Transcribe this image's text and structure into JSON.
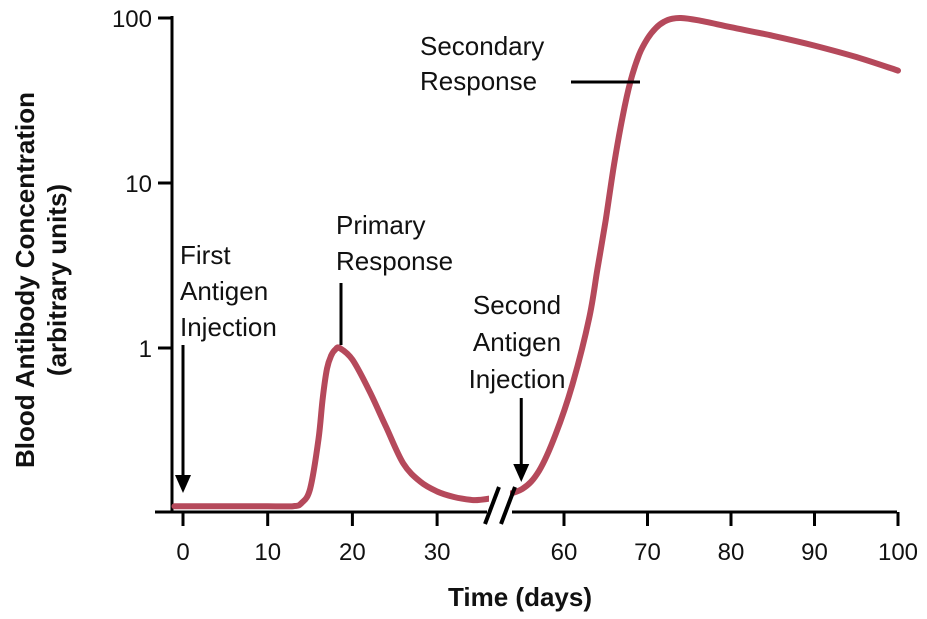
{
  "chart_data": {
    "type": "line",
    "xlabel": "Time (days)",
    "ylabel_line1": "Blood Antibody Concentration",
    "ylabel_line2": "(arbitrary units)",
    "y_scale": "log",
    "grid": false,
    "axis_break": "x between 30 and 60",
    "x_ticks": [
      0,
      10,
      20,
      30,
      60,
      70,
      80,
      90,
      100
    ],
    "x_tick_labels": [
      "0",
      "10",
      "20",
      "30",
      "60",
      "70",
      "80",
      "90",
      "100"
    ],
    "y_ticks": [
      1,
      10,
      100
    ],
    "y_tick_labels": [
      "1",
      "10",
      "100"
    ],
    "curve_color": "#b5495b",
    "series": [
      {
        "points": [
          [
            -1,
            0.11
          ],
          [
            0,
            0.11
          ],
          [
            5,
            0.11
          ],
          [
            10,
            0.11
          ],
          [
            13,
            0.11
          ],
          [
            14,
            0.115
          ],
          [
            15,
            0.14
          ],
          [
            16,
            0.28
          ],
          [
            16.5,
            0.5
          ],
          [
            17,
            0.75
          ],
          [
            17.5,
            0.9
          ],
          [
            18,
            0.98
          ],
          [
            18.5,
            1.0
          ],
          [
            20,
            0.85
          ],
          [
            22,
            0.55
          ],
          [
            24,
            0.33
          ],
          [
            26,
            0.2
          ],
          [
            28,
            0.155
          ],
          [
            30,
            0.135
          ],
          [
            32,
            0.125
          ],
          [
            34,
            0.12
          ],
          [
            35,
            0.12
          ],
          [
            52,
            0.125
          ],
          [
            55,
            0.14
          ],
          [
            57,
            0.18
          ],
          [
            59,
            0.3
          ],
          [
            61,
            0.6
          ],
          [
            63,
            1.5
          ],
          [
            64,
            3.0
          ],
          [
            65,
            6.0
          ],
          [
            66,
            13
          ],
          [
            67,
            25
          ],
          [
            68,
            42
          ],
          [
            69,
            60
          ],
          [
            70,
            75
          ],
          [
            71,
            87
          ],
          [
            72,
            95
          ],
          [
            73,
            99
          ],
          [
            74,
            100
          ],
          [
            76,
            97
          ],
          [
            80,
            88
          ],
          [
            85,
            78
          ],
          [
            90,
            68
          ],
          [
            95,
            58
          ],
          [
            100,
            48
          ]
        ]
      }
    ],
    "annotations": [
      {
        "lines": [
          "First",
          "Antigen",
          "Injection"
        ],
        "x": 0
      },
      {
        "lines": [
          "Primary",
          "Response"
        ],
        "x": 18.5
      },
      {
        "lines": [
          "Second",
          "Antigen",
          "Injection"
        ],
        "x": 55
      },
      {
        "lines": [
          "Secondary",
          "Response"
        ],
        "x": 69
      }
    ]
  }
}
